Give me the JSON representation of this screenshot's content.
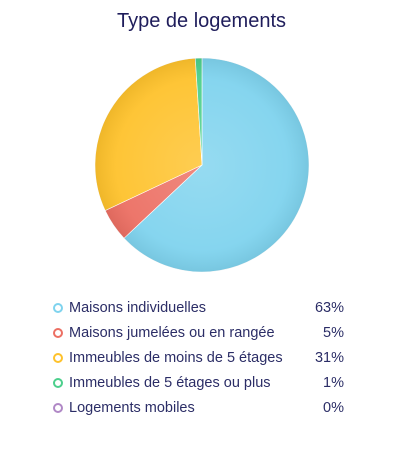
{
  "chart_data": {
    "type": "pie",
    "title": "Type de logements",
    "categories": [
      "Maisons individuelles",
      "Maisons jumelées ou en rangée",
      "Immeubles de moins de 5 étages",
      "Immeubles de 5 étages ou plus",
      "Logements mobiles"
    ],
    "values": [
      63,
      5,
      31,
      1,
      0
    ],
    "value_labels": [
      "63%",
      "5%",
      "31%",
      "1%",
      "0%"
    ],
    "colors": [
      "#7fd3ee",
      "#ec6f63",
      "#fec22c",
      "#4ccf8c",
      "#b088c6"
    ],
    "legend_position": "bottom"
  }
}
